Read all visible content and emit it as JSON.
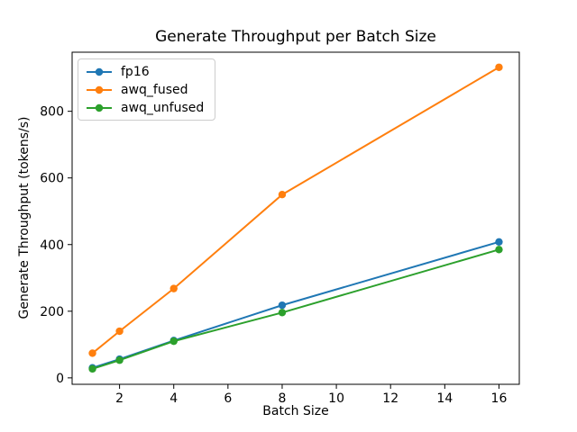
{
  "chart_data": {
    "type": "line",
    "title": "Generate Throughput per Batch Size",
    "xlabel": "Batch Size",
    "ylabel": "Generate Throughput (tokens/s)",
    "x": [
      1,
      2,
      4,
      8,
      16
    ],
    "series": [
      {
        "name": "fp16",
        "color": "#1f77b4",
        "values": [
          30,
          56,
          112,
          218,
          408
        ]
      },
      {
        "name": "awq_fused",
        "color": "#ff7f0e",
        "values": [
          74,
          140,
          268,
          550,
          932
        ]
      },
      {
        "name": "awq_unfused",
        "color": "#2ca02c",
        "values": [
          27,
          53,
          110,
          196,
          385
        ]
      }
    ],
    "xlim": [
      0.25,
      16.75
    ],
    "ylim": [
      -19.3,
      977.3
    ],
    "xticks": [
      2,
      4,
      6,
      8,
      10,
      12,
      14,
      16
    ],
    "yticks": [
      0,
      200,
      400,
      600,
      800
    ],
    "legend_position": "upper left",
    "grid": false,
    "marker": "o",
    "line_color_axes": "#000000",
    "background": "#ffffff"
  }
}
